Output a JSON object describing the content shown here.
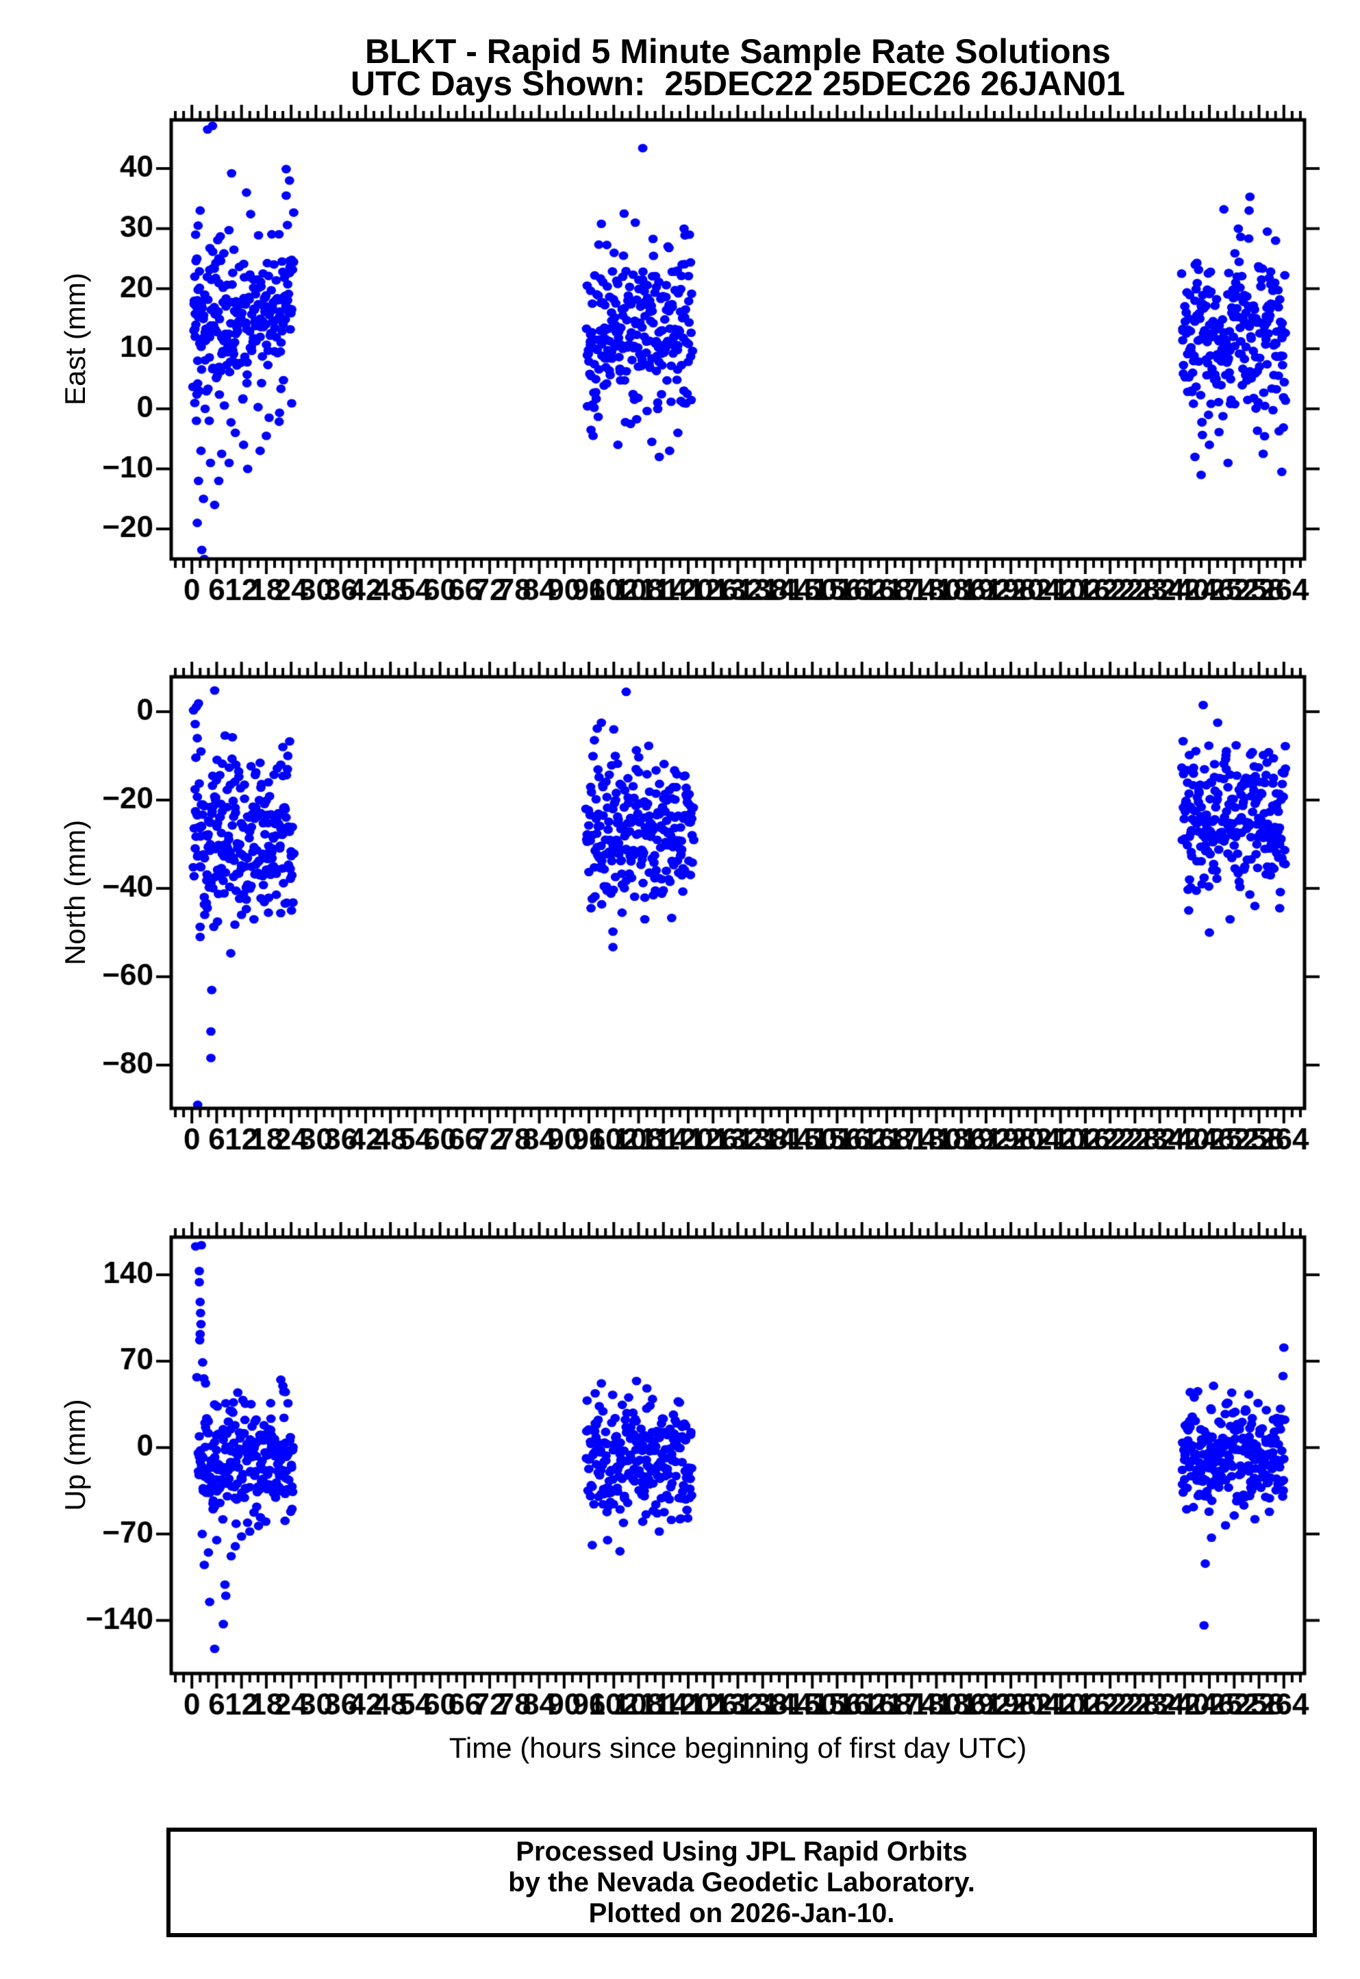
{
  "title": {
    "line1": "BLKT - Rapid 5 Minute Sample Rate Solutions",
    "line2": "UTC Days Shown:  25DEC22 25DEC26 26JAN01"
  },
  "station": "BLKT",
  "utc_days_shown": [
    "25DEC22",
    "25DEC26",
    "26JAN01"
  ],
  "xaxis": {
    "title": "Time (hours since beginning of first day UTC)",
    "tick_min": 0,
    "tick_max": 264,
    "tick_step": 6,
    "minor_step": 2,
    "xlim": [
      -5,
      269
    ]
  },
  "footer": {
    "line1": "Processed Using JPL Rapid Orbits",
    "line2": "by the Nevada Geodetic Laboratory.",
    "line3": "Plotted on 2026-Jan-10."
  },
  "style": {
    "point_color": "#0000FF",
    "axis_color": "#000000",
    "background": "#FFFFFF",
    "point_rx": 6.9,
    "point_ry": 6.3
  },
  "chart_data": [
    {
      "type": "scatter",
      "ylabel": "East (mm)",
      "yticks": [
        40,
        30,
        20,
        10,
        0,
        -10,
        -20
      ],
      "ylim": [
        -25.0,
        48.1
      ],
      "xlim": [
        -5,
        269
      ],
      "grid": false,
      "clusters": [
        {
          "label": "25DEC22",
          "hours": [
            0.3,
            24.6
          ],
          "count": 248,
          "mean": 15.5,
          "std": 7.2,
          "range": [
            -6,
            33
          ],
          "seed": 101,
          "extra_points": [
            [
              3.8,
              46.5
            ],
            [
              5.0,
              47.1
            ],
            [
              9.6,
              39.2
            ],
            [
              22.8,
              39.9
            ],
            [
              22.8,
              35.5
            ],
            [
              23.6,
              38
            ],
            [
              13.2,
              36
            ],
            [
              2.0,
              33
            ],
            [
              1.5,
              30.5
            ],
            [
              0.9,
              29
            ],
            [
              1.2,
              25
            ],
            [
              0.7,
              22
            ],
            [
              1.1,
              17
            ],
            [
              0.8,
              12
            ],
            [
              1.4,
              8
            ],
            [
              1.8,
              3
            ],
            [
              1.1,
              -2
            ],
            [
              2.2,
              -7
            ],
            [
              1.6,
              -12
            ],
            [
              2.8,
              -15
            ],
            [
              1.3,
              -19
            ],
            [
              2.4,
              -23.5
            ],
            [
              3.0,
              -25
            ],
            [
              4.5,
              -9
            ],
            [
              6.5,
              -12
            ],
            [
              5.5,
              -16
            ],
            [
              7.2,
              -7.5
            ],
            [
              9.0,
              -9
            ],
            [
              12.5,
              -6
            ],
            [
              13.5,
              -10
            ],
            [
              10.5,
              -4
            ],
            [
              3.2,
              0
            ],
            [
              4.2,
              -2
            ],
            [
              16.5,
              -7
            ],
            [
              18.0,
              -4.5
            ]
          ]
        },
        {
          "label": "25DEC26",
          "hours": [
            95.3,
            121.0
          ],
          "count": 245,
          "mean": 13,
          "std": 7,
          "range": [
            -3,
            30
          ],
          "seed": 102,
          "extra_points": [
            [
              109.0,
              43.4
            ],
            [
              104.5,
              32.5
            ],
            [
              107.2,
              31
            ],
            [
              99.0,
              30.8
            ],
            [
              119.0,
              30
            ],
            [
              120.3,
              29
            ],
            [
              97.0,
              -4.5
            ],
            [
              113.0,
              -8
            ],
            [
              115.5,
              -7
            ],
            [
              111.2,
              -5.5
            ],
            [
              96.5,
              -3.5
            ],
            [
              103.0,
              -6
            ],
            [
              117.5,
              -4
            ]
          ]
        },
        {
          "label": "26JAN01",
          "hours": [
            239.3,
            264.5
          ],
          "count": 242,
          "mean": 11.5,
          "std": 6.8,
          "range": [
            -7,
            29
          ],
          "seed": 103,
          "extra_points": [
            [
              255.8,
              35.3
            ],
            [
              255.6,
              33
            ],
            [
              249.5,
              33.2
            ],
            [
              253.0,
              30
            ],
            [
              260.0,
              29.5
            ],
            [
              262.0,
              28
            ],
            [
              263.5,
              -10.5
            ],
            [
              242.5,
              -8
            ],
            [
              244.0,
              -11
            ],
            [
              259.0,
              -7.5
            ],
            [
              246.0,
              -6
            ],
            [
              250.5,
              -9
            ]
          ]
        }
      ]
    },
    {
      "type": "scatter",
      "ylabel": "North (mm)",
      "yticks": [
        0,
        -20,
        -40,
        -60,
        -80
      ],
      "ylim": [
        -89.8,
        7.9
      ],
      "xlim": [
        -5,
        269
      ],
      "grid": false,
      "clusters": [
        {
          "label": "25DEC22",
          "hours": [
            0.3,
            24.6
          ],
          "count": 242,
          "mean": -28,
          "std": 9.5,
          "range": [
            -47,
            -4
          ],
          "seed": 201,
          "extra_points": [
            [
              5.5,
              4.8
            ],
            [
              1.6,
              1.9
            ],
            [
              1.1,
              1.1
            ],
            [
              0.4,
              0.3
            ],
            [
              0.8,
              -2.8
            ],
            [
              1.3,
              -6
            ],
            [
              2.2,
              -9
            ],
            [
              1.4,
              -89
            ],
            [
              4.6,
              -78.4
            ],
            [
              4.6,
              -72.4
            ],
            [
              4.8,
              -63
            ],
            [
              9.4,
              -54.7
            ],
            [
              2.0,
              -51
            ],
            [
              2.0,
              -48.7
            ],
            [
              5.3,
              -48.7
            ],
            [
              10.4,
              -48.2
            ],
            [
              3.1,
              -46
            ],
            [
              6.2,
              -47.5
            ],
            [
              12.0,
              -46
            ],
            [
              22.0,
              -8
            ],
            [
              23.2,
              -10
            ],
            [
              21.5,
              -12
            ],
            [
              15.0,
              -47
            ],
            [
              18.5,
              -45.5
            ]
          ]
        },
        {
          "label": "25DEC26",
          "hours": [
            95.3,
            121.3
          ],
          "count": 242,
          "mean": -26.5,
          "std": 9,
          "range": [
            -44,
            -5
          ],
          "seed": 202,
          "extra_points": [
            [
              105.0,
              4.5
            ],
            [
              99.0,
              -2.5
            ],
            [
              102.0,
              -4
            ],
            [
              101.8,
              -49.8
            ],
            [
              101.8,
              -53.3
            ],
            [
              116.0,
              -46.7
            ],
            [
              96.5,
              -44.5
            ],
            [
              109.5,
              -47
            ],
            [
              104.0,
              -45.5
            ],
            [
              98.0,
              -3.8
            ]
          ]
        },
        {
          "label": "26JAN01",
          "hours": [
            239.3,
            264.5
          ],
          "count": 242,
          "mean": -25,
          "std": 8.5,
          "range": [
            -43,
            -4
          ],
          "seed": 203,
          "extra_points": [
            [
              244.5,
              1.5
            ],
            [
              246.0,
              -50
            ],
            [
              251.0,
              -47
            ],
            [
              241.0,
              -45
            ],
            [
              257.0,
              -44
            ],
            [
              261.5,
              -15
            ],
            [
              263.0,
              -44.5
            ],
            [
              248.0,
              -2.5
            ]
          ]
        }
      ]
    },
    {
      "type": "scatter",
      "ylabel": "Up (mm)",
      "yticks": [
        140,
        70,
        0,
        -70,
        -140
      ],
      "ylim": [
        -183.0,
        170.5
      ],
      "xlim": [
        -5,
        269
      ],
      "grid": false,
      "clusters": [
        {
          "label": "25DEC22",
          "hours": [
            1.5,
            24.6
          ],
          "count": 238,
          "mean": -10,
          "std": 26,
          "range": [
            -66,
            48
          ],
          "seed": 301,
          "extra_points": [
            [
              2.3,
              164
            ],
            [
              0.9,
              163
            ],
            [
              1.8,
              143
            ],
            [
              1.8,
              134
            ],
            [
              2.0,
              118
            ],
            [
              2.1,
              109
            ],
            [
              2.2,
              100
            ],
            [
              2.0,
              92
            ],
            [
              1.9,
              87
            ],
            [
              2.6,
              69
            ],
            [
              2.9,
              56
            ],
            [
              1.2,
              57
            ],
            [
              3.3,
              52
            ],
            [
              21.5,
              55
            ],
            [
              22.0,
              50
            ],
            [
              22.6,
              45
            ],
            [
              5.5,
              -163
            ],
            [
              7.6,
              -143
            ],
            [
              4.3,
              -125
            ],
            [
              8.2,
              -120
            ],
            [
              8.0,
              -111
            ],
            [
              3.0,
              -95
            ],
            [
              9.5,
              -88
            ],
            [
              4.0,
              -85
            ],
            [
              6.0,
              -75
            ],
            [
              2.5,
              -70
            ],
            [
              10.5,
              -80
            ],
            [
              12.0,
              -72
            ],
            [
              14.0,
              -68
            ]
          ]
        },
        {
          "label": "25DEC26",
          "hours": [
            95.3,
            121.0
          ],
          "count": 240,
          "mean": -8,
          "std": 24,
          "range": [
            -66,
            48
          ],
          "seed": 302,
          "extra_points": [
            [
              107.5,
              54
            ],
            [
              110.0,
              48
            ],
            [
              97.5,
              44
            ],
            [
              99.0,
              52
            ],
            [
              96.8,
              -79
            ],
            [
              103.5,
              -84
            ],
            [
              100.5,
              -75
            ],
            [
              113.0,
              -68
            ],
            [
              109.0,
              -60
            ],
            [
              118.0,
              -58
            ]
          ]
        },
        {
          "label": "26JAN01",
          "hours": [
            239.3,
            264.2
          ],
          "count": 240,
          "mean": -6,
          "std": 23,
          "range": [
            -62,
            46
          ],
          "seed": 303,
          "extra_points": [
            [
              264.0,
              81
            ],
            [
              263.8,
              58
            ],
            [
              247.0,
              50
            ],
            [
              244.7,
              -144
            ],
            [
              245.0,
              -94
            ],
            [
              246.5,
              -73
            ],
            [
              249.9,
              -63
            ],
            [
              257.0,
              -58
            ],
            [
              252.0,
              -55
            ],
            [
              260.5,
              -52
            ],
            [
              240.5,
              -50
            ]
          ]
        }
      ]
    }
  ]
}
